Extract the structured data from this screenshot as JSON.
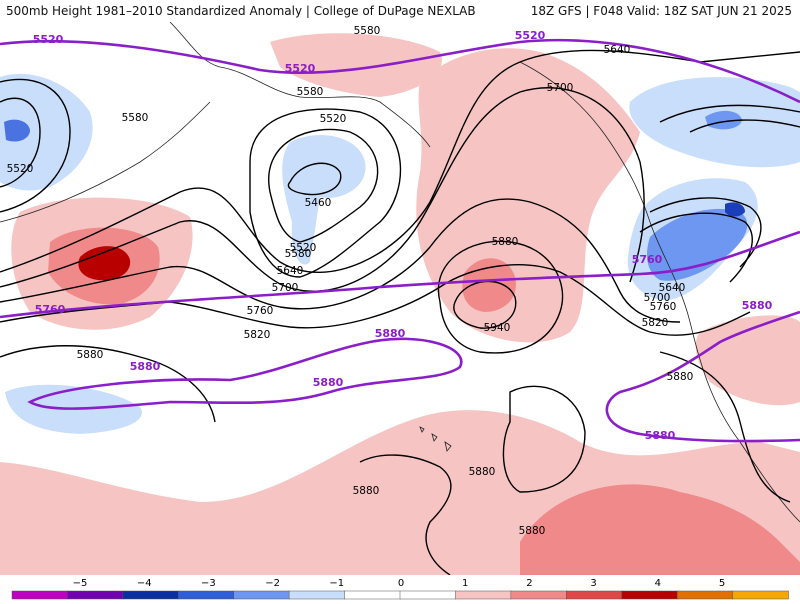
{
  "header": {
    "title": "500mb Height 1981–2010 Standardized Anomaly | College of DuPage NEXLAB",
    "valid": "18Z GFS | F048 Valid: 18Z SAT JUN 21 2025"
  },
  "contour_labels": {
    "h5580_a": "5580",
    "h5580_b": "5580",
    "h5580_c": "5580",
    "h5580_d": "5580",
    "h5520_a": "5520",
    "h5520_b": "5520",
    "h5520_c": "5520",
    "h5460": "5460",
    "h5640_a": "5640",
    "h5640_b": "5640",
    "h5640_c": "5640",
    "h5700_a": "5700",
    "h5700_b": "5700",
    "h5700_c": "5700",
    "h5760_a": "5760",
    "h5760_b": "5760",
    "h5820_a": "5820",
    "h5820_b": "5820",
    "h5880_a": "5880",
    "h5880_b": "5880",
    "h5880_c": "5880",
    "h5880_d": "5880",
    "h5880_e": "5880",
    "h5880_f": "5880",
    "h5940": "5940"
  },
  "climo_labels": {
    "c5520_a": "5520",
    "c5520_b": "5520",
    "c5520_c": "5520",
    "c5760_a": "5760",
    "c5760_b": "5760",
    "c5880_a": "5880",
    "c5880_b": "5880",
    "c5880_c": "5880",
    "c5880_d": "5880",
    "c5880_e": "5880"
  },
  "colorbar": {
    "ticks": [
      "−5",
      "−4",
      "−3",
      "−2",
      "−1",
      "0",
      "1",
      "2",
      "3",
      "4",
      "5"
    ],
    "colors": [
      "#c000c0",
      "#7000b0",
      "#0a2fa0",
      "#2f5fd8",
      "#6d97f0",
      "#c8defa",
      "#ffffff",
      "#ffffff",
      "#f7c4c4",
      "#f08a8a",
      "#e04848",
      "#b80000",
      "#e07000",
      "#f5a800"
    ]
  },
  "colors": {
    "climo_line": "#8a1ec8",
    "height_line": "#000000",
    "neg_anom_1": "#c8defa",
    "neg_anom_2": "#6d97f0",
    "pos_anom_1": "#f7c4c4",
    "pos_anom_2": "#f08a8a",
    "pos_anom_3": "#b80000"
  }
}
